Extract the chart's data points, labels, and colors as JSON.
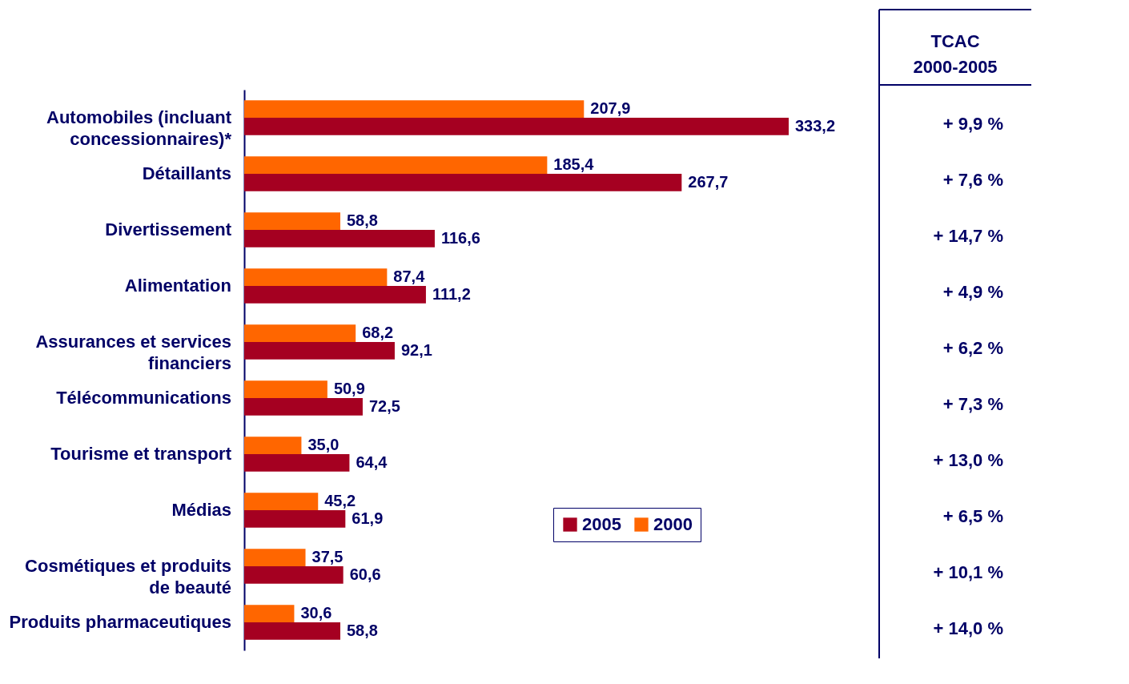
{
  "chart_data": {
    "type": "bar",
    "orientation": "horizontal",
    "categories": [
      "Automobiles (incluant concessionnaires)*",
      "Détaillants",
      "Divertissement",
      "Alimentation",
      "Assurances et services financiers",
      "Télécommunications",
      "Tourisme et transport",
      "Médias",
      "Cosmétiques et produits de beauté",
      "Produits pharmaceutiques"
    ],
    "series": [
      {
        "name": "2005",
        "color": "#a50021",
        "values": [
          333.2,
          267.7,
          116.6,
          111.2,
          92.1,
          72.5,
          64.4,
          61.9,
          60.6,
          58.8
        ],
        "value_labels": [
          "333,2",
          "267,7",
          "116,6",
          "111,2",
          "92,1",
          "72,5",
          "64,4",
          "61,9",
          "60,6",
          "58,8"
        ]
      },
      {
        "name": "2000",
        "color": "#ff6600",
        "values": [
          207.9,
          185.4,
          58.8,
          87.4,
          68.2,
          50.9,
          35.0,
          45.2,
          37.5,
          30.6
        ],
        "value_labels": [
          "207,9",
          "185,4",
          "58,8",
          "87,4",
          "68,2",
          "50,9",
          "35,0",
          "45,2",
          "37,5",
          "30,6"
        ]
      }
    ],
    "data_labels": true,
    "legend": "bottom right",
    "grid": false,
    "annotations": [
      "TCAC 2000-2005",
      "+ 9,9 %",
      "+ 7,6 %",
      "+ 14,7 %",
      "+ 4,9 %",
      "+ 6,2 %",
      "+ 7,3 %",
      "+ 13,0 %",
      "+ 6,5 %",
      "+ 10,1 %",
      "+ 14,0 %"
    ]
  }
}
